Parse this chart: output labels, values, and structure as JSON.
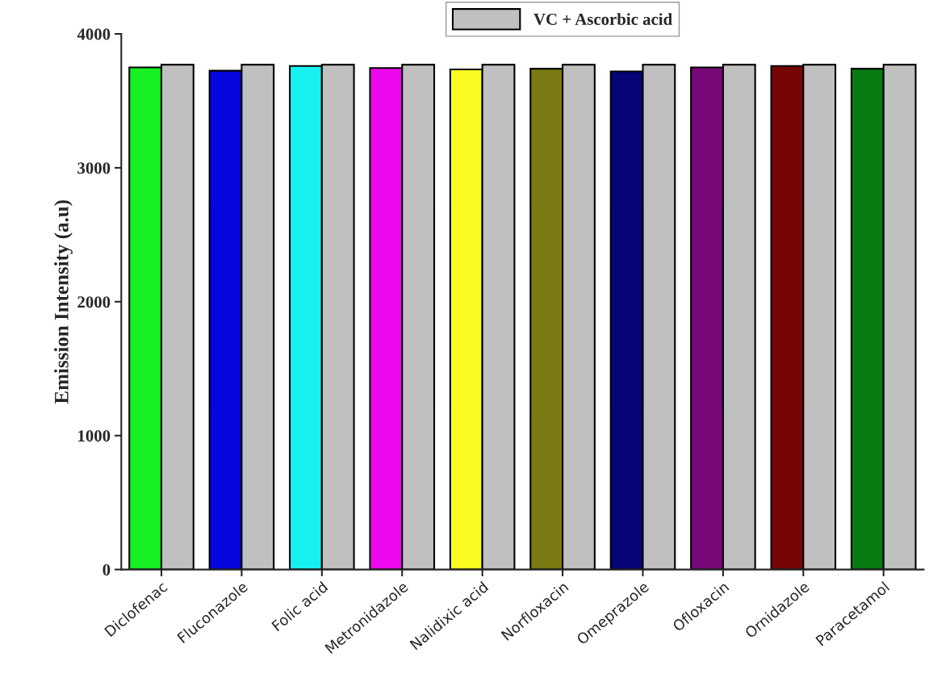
{
  "chart_data": {
    "type": "bar",
    "ylabel": "Emission Intensity (a.u)",
    "categories": [
      "Diclofenac",
      "Fluconazole",
      "Folic acid",
      "Metronidazole",
      "Nalidixic acid",
      "Norfloxacin",
      "Omeprazole",
      "Ofloxacin",
      "Ornidazole",
      "Paracetamol"
    ],
    "series": [
      {
        "colors": [
          "#16f024",
          "#0505dd",
          "#16f0f0",
          "#ee08ee",
          "#fbfb22",
          "#7a7a12",
          "#050578",
          "#780878",
          "#780505",
          "#087a12"
        ],
        "values": [
          3750,
          3725,
          3760,
          3745,
          3735,
          3740,
          3720,
          3750,
          3760,
          3740
        ]
      },
      {
        "name": "VC + Ascorbic acid",
        "color": "#c0c0c0",
        "values": [
          3770,
          3770,
          3770,
          3770,
          3770,
          3770,
          3770,
          3770,
          3770,
          3770
        ]
      }
    ],
    "ylim": [
      0,
      4000
    ],
    "yticks": [
      0,
      1000,
      2000,
      3000,
      4000
    ],
    "legend": "top",
    "grid": false
  }
}
